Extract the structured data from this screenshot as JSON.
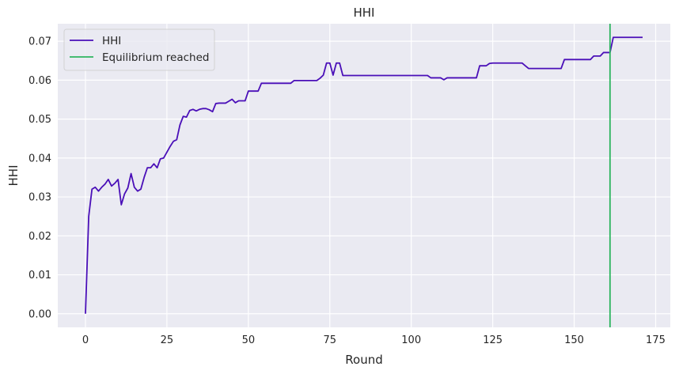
{
  "chart_data": {
    "type": "line",
    "title": "HHI",
    "xlabel": "Round",
    "ylabel": "HHI",
    "xlim": [
      -8.5,
      179.5
    ],
    "ylim": [
      -0.0035,
      0.0745
    ],
    "xticks": [
      0,
      25,
      50,
      75,
      100,
      125,
      150,
      175
    ],
    "yticks": [
      0.0,
      0.01,
      0.02,
      0.03,
      0.04,
      0.05,
      0.06,
      0.07
    ],
    "ytick_labels": [
      "0.00",
      "0.01",
      "0.02",
      "0.03",
      "0.04",
      "0.05",
      "0.06",
      "0.07"
    ],
    "grid": true,
    "legend_position": "top-left",
    "background": "#eaeaf2",
    "series": [
      {
        "name": "HHI",
        "color": "#4a0fb8",
        "x": [
          0,
          1,
          2,
          3,
          4,
          5,
          6,
          7,
          8,
          9,
          10,
          11,
          12,
          13,
          14,
          15,
          16,
          17,
          18,
          19,
          20,
          21,
          22,
          23,
          24,
          25,
          26,
          27,
          28,
          29,
          30,
          31,
          32,
          33,
          34,
          35,
          36,
          37,
          38,
          39,
          40,
          41,
          42,
          43,
          44,
          45,
          46,
          47,
          48,
          49,
          50,
          51,
          52,
          53,
          54,
          55,
          60,
          63,
          64,
          70,
          71,
          72,
          73,
          74,
          75,
          76,
          77,
          78,
          79,
          80,
          85,
          90,
          95,
          100,
          104,
          105,
          106,
          107,
          108,
          109,
          110,
          111,
          112,
          115,
          120,
          121,
          122,
          123,
          124,
          125,
          130,
          134,
          135,
          136,
          140,
          146,
          147,
          148,
          150,
          155,
          156,
          157,
          158,
          159,
          160,
          161,
          162,
          165,
          170,
          171
        ],
        "y": [
          0.0,
          0.025,
          0.032,
          0.0325,
          0.0315,
          0.0325,
          0.0333,
          0.0345,
          0.0328,
          0.0335,
          0.0345,
          0.028,
          0.0308,
          0.0323,
          0.036,
          0.0325,
          0.0315,
          0.032,
          0.035,
          0.0375,
          0.0375,
          0.0385,
          0.0375,
          0.0398,
          0.04,
          0.0415,
          0.043,
          0.0443,
          0.0447,
          0.0485,
          0.0507,
          0.0505,
          0.0522,
          0.0525,
          0.0521,
          0.0525,
          0.0527,
          0.0527,
          0.0524,
          0.0519,
          0.054,
          0.0541,
          0.0541,
          0.0541,
          0.0546,
          0.0551,
          0.0542,
          0.0547,
          0.0547,
          0.0547,
          0.0572,
          0.0572,
          0.0572,
          0.0572,
          0.0592,
          0.0592,
          0.0592,
          0.0592,
          0.0599,
          0.0599,
          0.0599,
          0.0605,
          0.0613,
          0.0644,
          0.0644,
          0.0613,
          0.0644,
          0.0644,
          0.0612,
          0.0612,
          0.0612,
          0.0612,
          0.0612,
          0.0612,
          0.0612,
          0.0612,
          0.0606,
          0.0606,
          0.0606,
          0.0606,
          0.0601,
          0.0606,
          0.0606,
          0.0606,
          0.0606,
          0.0637,
          0.0637,
          0.0637,
          0.0643,
          0.0644,
          0.0644,
          0.0644,
          0.0637,
          0.063,
          0.063,
          0.063,
          0.0653,
          0.0653,
          0.0653,
          0.0653,
          0.0662,
          0.0662,
          0.0662,
          0.0671,
          0.0671,
          0.0671,
          0.071,
          0.071,
          0.071,
          0.071
        ]
      },
      {
        "name": "Equilibrium reached",
        "color": "#2eb560",
        "type": "vline",
        "x": 161
      }
    ]
  }
}
